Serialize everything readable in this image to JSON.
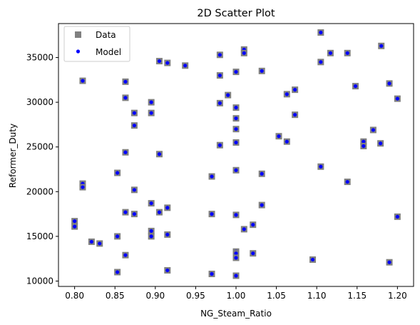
{
  "chart_data": {
    "type": "scatter",
    "title": "2D Scatter Plot",
    "xlabel": "NG_Steam_Ratio",
    "ylabel": "Reformer_Duty",
    "xlim": [
      0.78,
      1.22
    ],
    "ylim": [
      9400,
      38800
    ],
    "xticks": [
      "0.80",
      "0.85",
      "0.90",
      "0.95",
      "1.00",
      "1.05",
      "1.10",
      "1.15",
      "1.20"
    ],
    "yticks": [
      "10000",
      "15000",
      "20000",
      "25000",
      "30000",
      "35000"
    ],
    "grid": false,
    "legend_position": "upper-left",
    "series": [
      {
        "name": "Data",
        "marker": "square",
        "color": "#808080"
      },
      {
        "name": "Model",
        "marker": "circle",
        "color": "#0000ff"
      }
    ],
    "points": [
      [
        1.105,
        37800
      ],
      [
        1.01,
        35900
      ],
      [
        1.01,
        35500
      ],
      [
        0.98,
        35300
      ],
      [
        0.905,
        34600
      ],
      [
        0.915,
        34400
      ],
      [
        0.937,
        34100
      ],
      [
        1.105,
        34500
      ],
      [
        1.117,
        35500
      ],
      [
        1.138,
        35500
      ],
      [
        1.18,
        36300
      ],
      [
        1.0,
        33400
      ],
      [
        0.98,
        33000
      ],
      [
        1.032,
        33500
      ],
      [
        0.81,
        32400
      ],
      [
        0.863,
        32300
      ],
      [
        1.19,
        32100
      ],
      [
        1.148,
        31800
      ],
      [
        1.073,
        31400
      ],
      [
        1.063,
        30900
      ],
      [
        0.863,
        30500
      ],
      [
        0.99,
        30800
      ],
      [
        0.895,
        30000
      ],
      [
        0.98,
        29900
      ],
      [
        1.2,
        30400
      ],
      [
        1.0,
        29400
      ],
      [
        0.874,
        28800
      ],
      [
        0.895,
        28800
      ],
      [
        1.073,
        28600
      ],
      [
        1.0,
        28200
      ],
      [
        0.874,
        27400
      ],
      [
        1.0,
        27000
      ],
      [
        1.17,
        26900
      ],
      [
        1.053,
        26200
      ],
      [
        1.063,
        25600
      ],
      [
        1.158,
        25600
      ],
      [
        1.179,
        25400
      ],
      [
        1.158,
        25100
      ],
      [
        0.98,
        25200
      ],
      [
        1.0,
        25500
      ],
      [
        0.863,
        24400
      ],
      [
        0.905,
        24200
      ],
      [
        1.105,
        22800
      ],
      [
        1.0,
        22400
      ],
      [
        0.853,
        22100
      ],
      [
        1.032,
        22000
      ],
      [
        0.97,
        21700
      ],
      [
        1.138,
        21100
      ],
      [
        0.81,
        20900
      ],
      [
        0.81,
        20500
      ],
      [
        0.874,
        20200
      ],
      [
        0.895,
        18700
      ],
      [
        1.032,
        18500
      ],
      [
        0.915,
        18200
      ],
      [
        0.863,
        17700
      ],
      [
        0.905,
        17700
      ],
      [
        0.874,
        17500
      ],
      [
        0.97,
        17500
      ],
      [
        1.0,
        17400
      ],
      [
        1.2,
        17200
      ],
      [
        0.8,
        16700
      ],
      [
        0.8,
        16100
      ],
      [
        1.021,
        16300
      ],
      [
        1.01,
        15800
      ],
      [
        0.895,
        15600
      ],
      [
        0.915,
        15200
      ],
      [
        0.853,
        15000
      ],
      [
        0.895,
        15000
      ],
      [
        0.821,
        14400
      ],
      [
        0.831,
        14200
      ],
      [
        1.0,
        13300
      ],
      [
        1.0,
        13100
      ],
      [
        1.021,
        13100
      ],
      [
        0.863,
        12900
      ],
      [
        1.0,
        12600
      ],
      [
        1.095,
        12400
      ],
      [
        1.19,
        12100
      ],
      [
        0.915,
        11200
      ],
      [
        0.853,
        11000
      ],
      [
        0.97,
        10800
      ],
      [
        1.0,
        10600
      ]
    ]
  }
}
